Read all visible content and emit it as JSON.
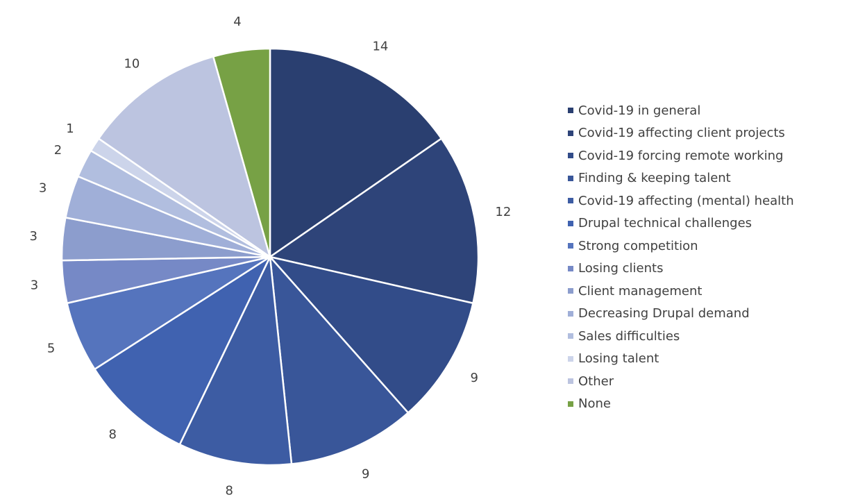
{
  "chart_data": {
    "type": "pie",
    "slices": [
      {
        "label": "Covid-19 in general",
        "value": 14,
        "color": "#2a3f70"
      },
      {
        "label": "Covid-19 affecting client projects",
        "value": 12,
        "color": "#2e4479"
      },
      {
        "label": "Covid-19 forcing remote working",
        "value": 9,
        "color": "#324c89"
      },
      {
        "label": "Finding & keeping talent",
        "value": 9,
        "color": "#395699"
      },
      {
        "label": "Covid-19 affecting (mental) health",
        "value": 8,
        "color": "#3d5ca3"
      },
      {
        "label": "Drupal technical challenges",
        "value": 8,
        "color": "#4062b0"
      },
      {
        "label": "Strong competition",
        "value": 5,
        "color": "#5574bd"
      },
      {
        "label": "Losing clients",
        "value": 3,
        "color": "#7689c6"
      },
      {
        "label": "Client management",
        "value": 3,
        "color": "#8c9dcd"
      },
      {
        "label": "Decreasing Drupal demand",
        "value": 3,
        "color": "#a0afd8"
      },
      {
        "label": "Sales difficulties",
        "value": 2,
        "color": "#b1bedf"
      },
      {
        "label": "Losing talent",
        "value": 1,
        "color": "#ccd4ea"
      },
      {
        "label": "Other",
        "value": 10,
        "color": "#bcc4e0"
      },
      {
        "label": "None",
        "value": 4,
        "color": "#77a145"
      }
    ],
    "data_labels": true,
    "legend_position": "right"
  }
}
